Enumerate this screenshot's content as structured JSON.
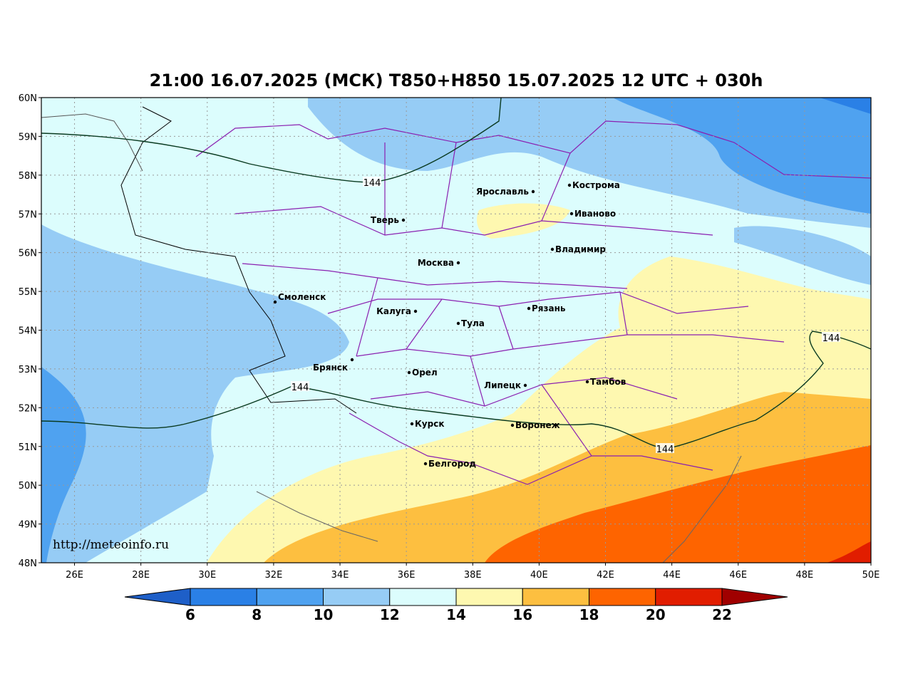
{
  "title": "21:00 16.07.2025 (МСК) T850+H850 15.07.2025 12 UTC + 030h",
  "watermark": "http://meteoinfo.ru",
  "map": {
    "lon_range": [
      25,
      50
    ],
    "lat_range": [
      48,
      60
    ],
    "lon_ticks": [
      {
        "value": 26,
        "label": "26E"
      },
      {
        "value": 28,
        "label": "28E"
      },
      {
        "value": 30,
        "label": "30E"
      },
      {
        "value": 32,
        "label": "32E"
      },
      {
        "value": 34,
        "label": "34E"
      },
      {
        "value": 36,
        "label": "36E"
      },
      {
        "value": 38,
        "label": "38E"
      },
      {
        "value": 40,
        "label": "40E"
      },
      {
        "value": 42,
        "label": "42E"
      },
      {
        "value": 44,
        "label": "44E"
      },
      {
        "value": 46,
        "label": "46E"
      },
      {
        "value": 48,
        "label": "48E"
      },
      {
        "value": 50,
        "label": "50E"
      }
    ],
    "lat_ticks": [
      {
        "value": 48,
        "label": "48N"
      },
      {
        "value": 49,
        "label": "49N"
      },
      {
        "value": 50,
        "label": "50N"
      },
      {
        "value": 51,
        "label": "51N"
      },
      {
        "value": 52,
        "label": "52N"
      },
      {
        "value": 53,
        "label": "53N"
      },
      {
        "value": 54,
        "label": "54N"
      },
      {
        "value": 55,
        "label": "55N"
      },
      {
        "value": 56,
        "label": "56N"
      },
      {
        "value": 57,
        "label": "57N"
      },
      {
        "value": 58,
        "label": "58N"
      },
      {
        "value": 59,
        "label": "59N"
      },
      {
        "value": 60,
        "label": "60N"
      }
    ]
  },
  "cities": [
    "Ярославль",
    "Кострома",
    "Иваново",
    "Тверь",
    "Москва",
    "Владимир",
    "Смоленск",
    "Калуга",
    "Тула",
    "Рязань",
    "Брянск",
    "Орел",
    "Липецк",
    "Тамбов",
    "Курск",
    "Воронеж",
    "Белгород"
  ],
  "contour_labels": [
    "144",
    "144",
    "144",
    "144"
  ],
  "colorbar": {
    "levels": [
      6,
      8,
      10,
      12,
      14,
      16,
      18,
      20,
      22
    ],
    "colors": [
      "#2a80e6",
      "#4fa2f0",
      "#96ccf5",
      "#dcfdfd",
      "#fef8b0",
      "#fdbf40",
      "#fe6400",
      "#e11d00"
    ],
    "under_color": "#1e5fc8",
    "over_color": "#a00000"
  }
}
